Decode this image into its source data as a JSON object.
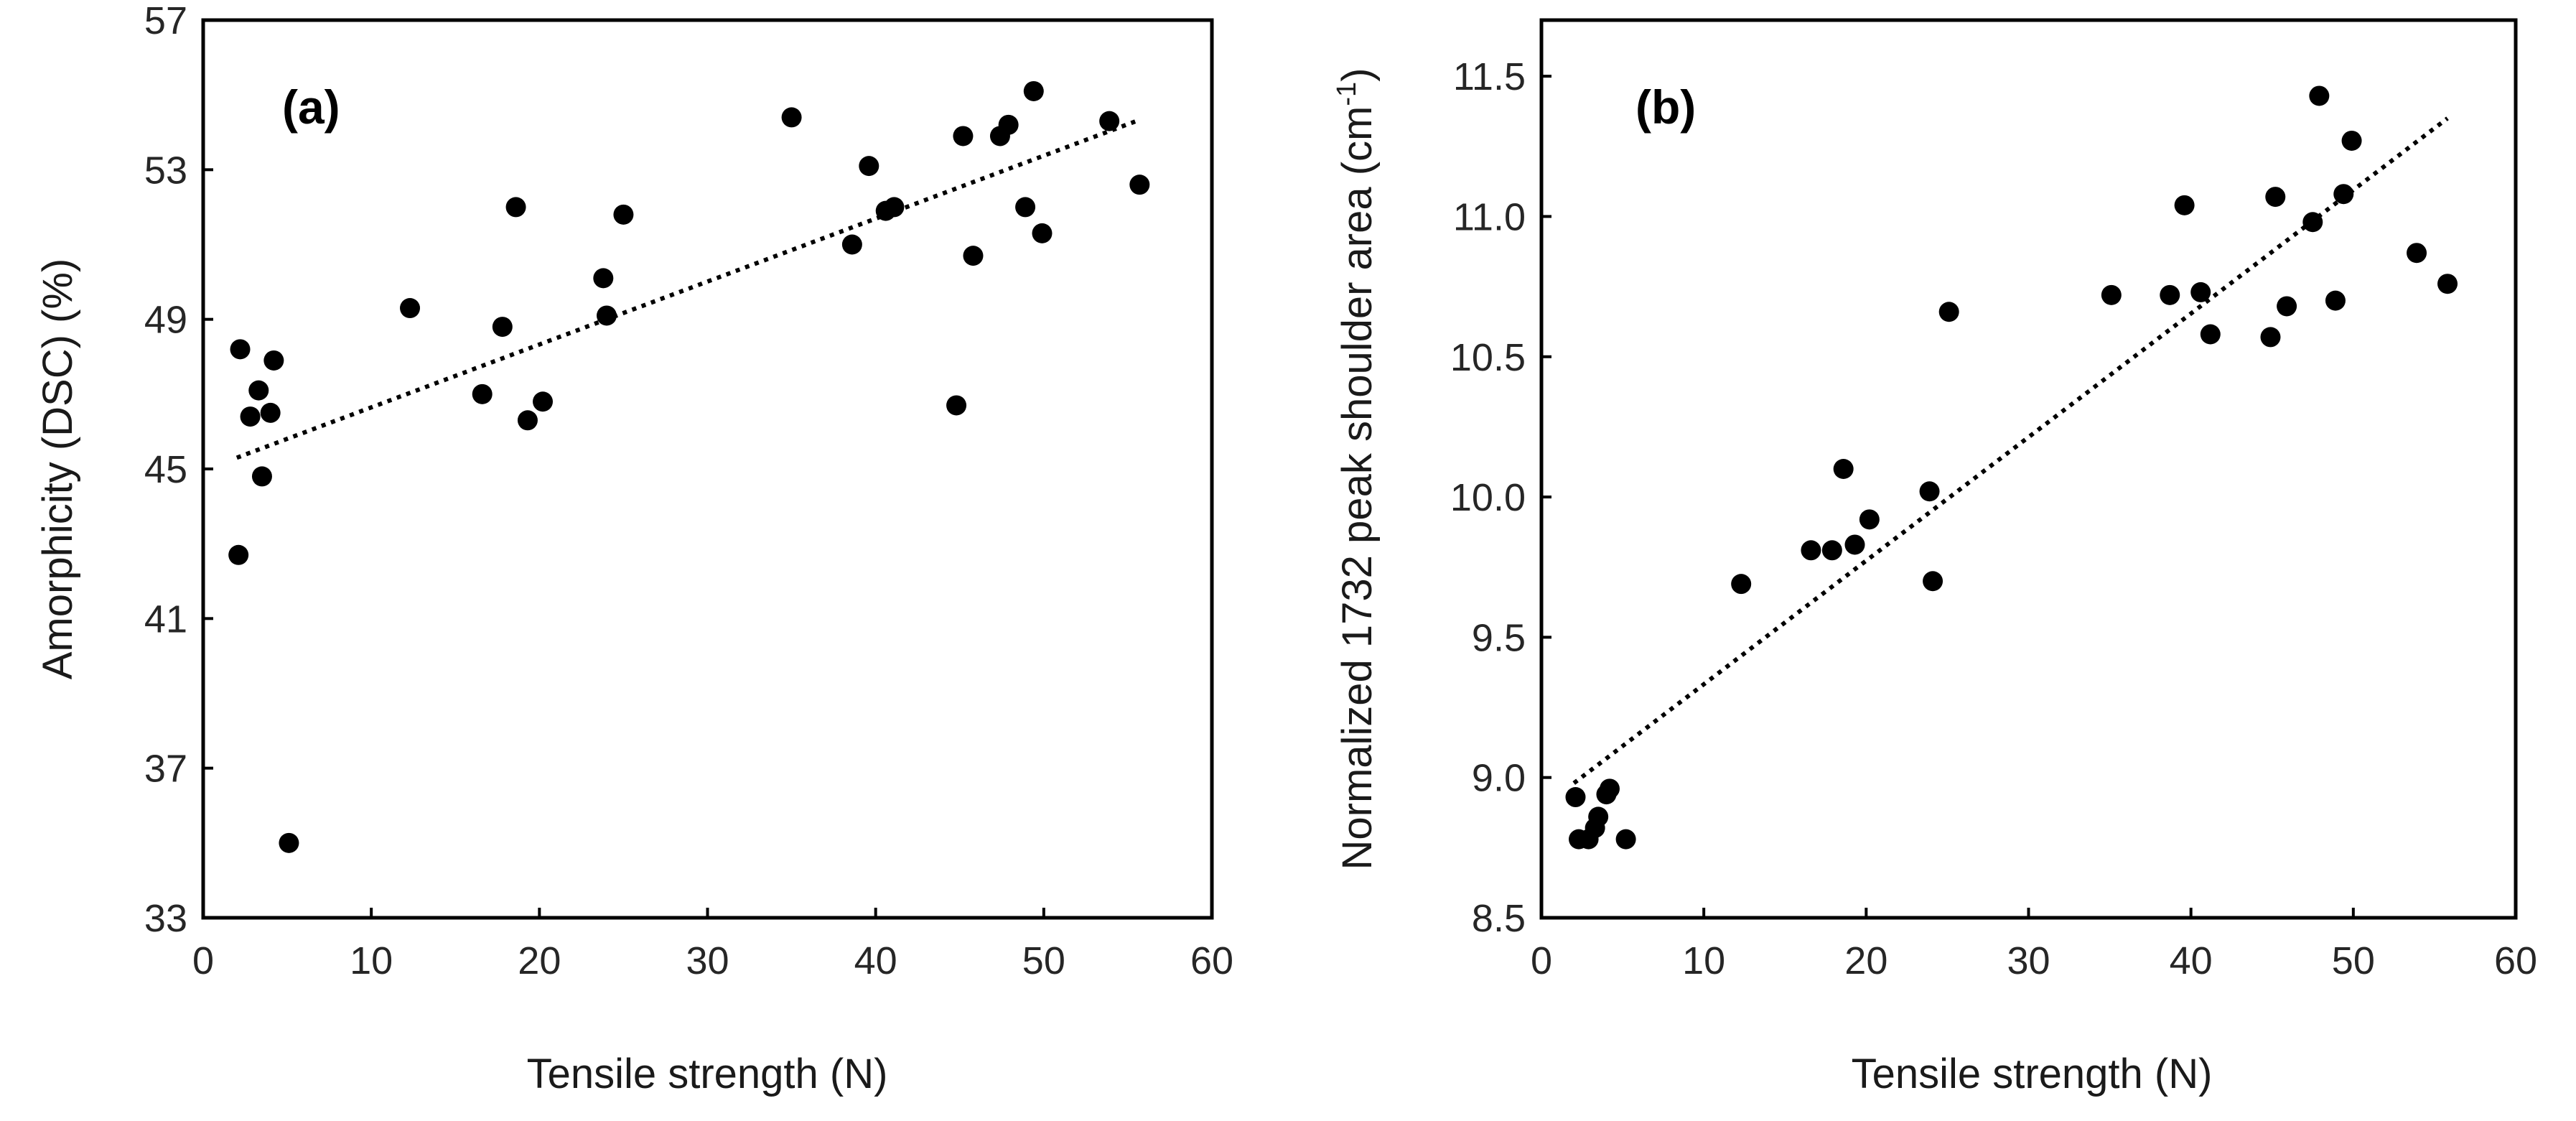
{
  "colors": {
    "points": "#000000",
    "axes": "#000000",
    "text": "#262626"
  },
  "chart_data": [
    {
      "type": "scatter",
      "panel_label": "(a)",
      "title": "",
      "xlabel": "Tensile strength (N)",
      "ylabel": "Amorphicity (DSC) (%)",
      "xlim": [
        0,
        60
      ],
      "ylim": [
        33,
        57
      ],
      "xticks": [
        0,
        10,
        20,
        30,
        40,
        50,
        60
      ],
      "yticks": [
        33,
        37,
        41,
        45,
        49,
        53,
        57
      ],
      "x_tick_labels": [
        "0",
        "10",
        "20",
        "30",
        "40",
        "50",
        "60"
      ],
      "y_tick_labels": [
        "33",
        "37",
        "41",
        "45",
        "49",
        "53",
        "57"
      ],
      "grid": false,
      "trendline": {
        "style": "dotted",
        "x": [
          2.0,
          55.5
        ],
        "y": [
          45.3,
          54.3
        ]
      },
      "points": [
        {
          "x": 2.1,
          "y": 42.7
        },
        {
          "x": 2.2,
          "y": 48.2
        },
        {
          "x": 2.8,
          "y": 46.4
        },
        {
          "x": 3.3,
          "y": 47.1
        },
        {
          "x": 3.5,
          "y": 44.8
        },
        {
          "x": 4.0,
          "y": 46.5
        },
        {
          "x": 4.2,
          "y": 47.9
        },
        {
          "x": 5.1,
          "y": 35.0
        },
        {
          "x": 12.3,
          "y": 49.3
        },
        {
          "x": 16.6,
          "y": 47.0
        },
        {
          "x": 17.8,
          "y": 48.8
        },
        {
          "x": 18.6,
          "y": 52.0
        },
        {
          "x": 19.3,
          "y": 46.3
        },
        {
          "x": 20.2,
          "y": 46.8
        },
        {
          "x": 23.8,
          "y": 50.1
        },
        {
          "x": 24.0,
          "y": 49.1
        },
        {
          "x": 25.0,
          "y": 51.8
        },
        {
          "x": 35.0,
          "y": 54.4
        },
        {
          "x": 38.6,
          "y": 51.0
        },
        {
          "x": 39.6,
          "y": 53.1
        },
        {
          "x": 40.6,
          "y": 51.9
        },
        {
          "x": 41.1,
          "y": 52.0
        },
        {
          "x": 44.8,
          "y": 46.7
        },
        {
          "x": 45.2,
          "y": 53.9
        },
        {
          "x": 45.8,
          "y": 50.7
        },
        {
          "x": 47.4,
          "y": 53.9
        },
        {
          "x": 47.9,
          "y": 54.2
        },
        {
          "x": 48.9,
          "y": 52.0
        },
        {
          "x": 49.4,
          "y": 55.1
        },
        {
          "x": 49.9,
          "y": 51.3
        },
        {
          "x": 53.9,
          "y": 54.3
        },
        {
          "x": 55.7,
          "y": 52.6
        }
      ]
    },
    {
      "type": "scatter",
      "panel_label": "(b)",
      "title": "",
      "xlabel": "Tensile strength (N)",
      "ylabel": "Normalized 1732 peak shoulder area (cm",
      "ylabel_superscript": "-1",
      "ylabel_suffix": ")",
      "xlim": [
        0,
        60
      ],
      "ylim": [
        8.5,
        11.7
      ],
      "xticks": [
        0,
        10,
        20,
        30,
        40,
        50,
        60
      ],
      "yticks": [
        8.5,
        9.0,
        9.5,
        10.0,
        10.5,
        11.0,
        11.5
      ],
      "x_tick_labels": [
        "0",
        "10",
        "20",
        "30",
        "40",
        "50",
        "60"
      ],
      "y_tick_labels": [
        "8.5",
        "9.0",
        "9.5",
        "10.0",
        "10.5",
        "11.0",
        "11.5"
      ],
      "grid": false,
      "trendline": {
        "style": "dotted",
        "x": [
          2.0,
          55.8
        ],
        "y": [
          8.98,
          11.35
        ]
      },
      "points": [
        {
          "x": 2.1,
          "y": 8.93
        },
        {
          "x": 2.3,
          "y": 8.78
        },
        {
          "x": 2.9,
          "y": 8.78
        },
        {
          "x": 3.3,
          "y": 8.82
        },
        {
          "x": 3.5,
          "y": 8.86
        },
        {
          "x": 4.0,
          "y": 8.94
        },
        {
          "x": 4.2,
          "y": 8.96
        },
        {
          "x": 5.2,
          "y": 8.78
        },
        {
          "x": 12.3,
          "y": 9.69
        },
        {
          "x": 16.6,
          "y": 9.81
        },
        {
          "x": 17.9,
          "y": 9.81
        },
        {
          "x": 18.6,
          "y": 10.1
        },
        {
          "x": 19.3,
          "y": 9.83
        },
        {
          "x": 20.2,
          "y": 9.92
        },
        {
          "x": 23.9,
          "y": 10.02
        },
        {
          "x": 24.1,
          "y": 9.7
        },
        {
          "x": 25.1,
          "y": 10.66
        },
        {
          "x": 35.1,
          "y": 10.72
        },
        {
          "x": 38.7,
          "y": 10.72
        },
        {
          "x": 39.6,
          "y": 11.04
        },
        {
          "x": 40.6,
          "y": 10.73
        },
        {
          "x": 41.2,
          "y": 10.58
        },
        {
          "x": 44.9,
          "y": 10.57
        },
        {
          "x": 45.2,
          "y": 11.07
        },
        {
          "x": 45.9,
          "y": 10.68
        },
        {
          "x": 47.5,
          "y": 10.98
        },
        {
          "x": 47.9,
          "y": 11.43
        },
        {
          "x": 48.9,
          "y": 10.7
        },
        {
          "x": 49.4,
          "y": 11.08
        },
        {
          "x": 49.9,
          "y": 11.27
        },
        {
          "x": 53.9,
          "y": 10.87
        },
        {
          "x": 55.8,
          "y": 10.76
        }
      ]
    }
  ]
}
